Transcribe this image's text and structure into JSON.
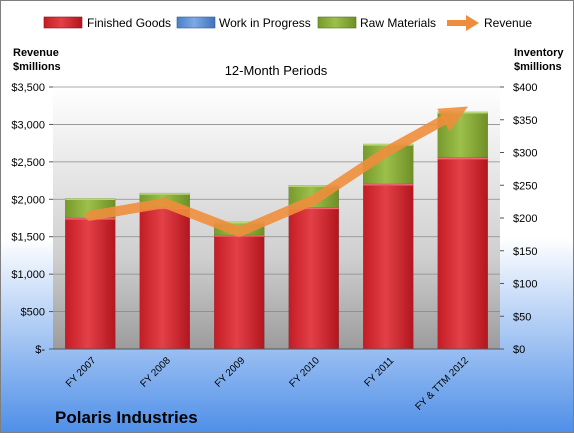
{
  "company": "Polaris Industries",
  "chart_data": {
    "type": "bar",
    "title": "12-Month Periods",
    "categories": [
      "FY 2007",
      "FY 2008",
      "FY 2009",
      "FY 2010",
      "FY 2011",
      "FY & TTM 2012"
    ],
    "stacked": true,
    "series": [
      {
        "name": "Finished Goods",
        "axis": "right",
        "color": "#d9262e",
        "values": [
          200,
          216,
          174,
          216,
          252,
          292
        ]
      },
      {
        "name": "Work in Progress",
        "axis": "right",
        "color": "#5b8fd6",
        "values": [
          0,
          0,
          0,
          0,
          0,
          0
        ]
      },
      {
        "name": "Raw Materials",
        "axis": "right",
        "color": "#8db33a",
        "values": [
          30,
          22,
          20,
          34,
          61,
          70
        ]
      }
    ],
    "line": {
      "name": "Revenue",
      "axis": "left",
      "color": "#ee8e3c",
      "values": [
        1780,
        1950,
        1565,
        1990,
        2650,
        3200
      ]
    },
    "y_left": {
      "label": [
        "Revenue",
        "$millions"
      ],
      "min": 0,
      "max": 3500,
      "step": 500,
      "ticks": [
        "$-",
        "$500",
        "$1,000",
        "$1,500",
        "$2,000",
        "$2,500",
        "$3,000",
        "$3,500"
      ]
    },
    "y_right": {
      "label": [
        "Inventory",
        "$millions"
      ],
      "min": 0,
      "max": 400,
      "step": 50,
      "ticks": [
        "$0",
        "$50",
        "$100",
        "$150",
        "$200",
        "$250",
        "$300",
        "$350",
        "$400"
      ]
    },
    "legend": {
      "position": "top"
    },
    "grid": true
  }
}
